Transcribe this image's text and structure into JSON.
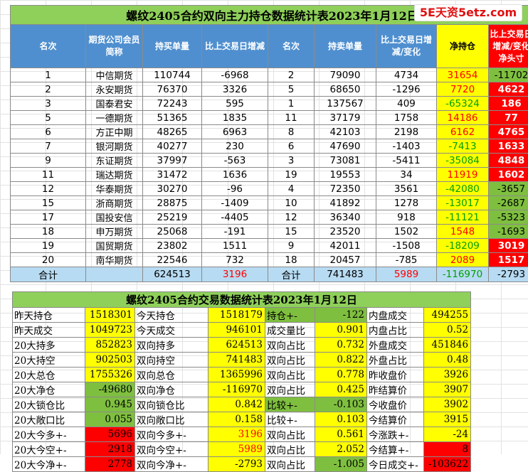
{
  "top": {
    "title": "螺纹2405合约双向主力持仓数据统计表2023年1月12日",
    "headers": {
      "rank_buy": "名次",
      "member": "期货公司会员简称",
      "buy_vol": "持买单量",
      "buy_chg": "比上交易日增减",
      "rank_sell": "名次",
      "sell_vol": "持卖单量",
      "sell_chg": "比上交易日增减/变化",
      "net": "净持仓",
      "net_chg": "比上交易日增减/变化净头寸"
    },
    "rows": [
      {
        "rank": "1",
        "name": "中信期货",
        "buy": "110744",
        "buy_chg": "-6968",
        "srank": "2",
        "sell": "79090",
        "sell_chg": "4734",
        "net": "31654",
        "net_chg": "-11702"
      },
      {
        "rank": "2",
        "name": "永安期货",
        "buy": "76370",
        "buy_chg": "3326",
        "srank": "5",
        "sell": "68650",
        "sell_chg": "-1296",
        "net": "7720",
        "net_chg": "4622"
      },
      {
        "rank": "3",
        "name": "国泰君安",
        "buy": "72243",
        "buy_chg": "595",
        "srank": "1",
        "sell": "137567",
        "sell_chg": "409",
        "net": "-65324",
        "net_chg": "186"
      },
      {
        "rank": "5",
        "name": "一德期货",
        "buy": "51365",
        "buy_chg": "1835",
        "srank": "11",
        "sell": "37179",
        "sell_chg": "1758",
        "net": "14186",
        "net_chg": "77"
      },
      {
        "rank": "6",
        "name": "方正中期",
        "buy": "48265",
        "buy_chg": "6963",
        "srank": "8",
        "sell": "42103",
        "sell_chg": "2198",
        "net": "6162",
        "net_chg": "4765"
      },
      {
        "rank": "7",
        "name": "银河期货",
        "buy": "40277",
        "buy_chg": "230",
        "srank": "6",
        "sell": "47690",
        "sell_chg": "-1403",
        "net": "-7413",
        "net_chg": "1633"
      },
      {
        "rank": "9",
        "name": "东证期货",
        "buy": "37997",
        "buy_chg": "-563",
        "srank": "3",
        "sell": "73081",
        "sell_chg": "-5411",
        "net": "-35084",
        "net_chg": "4848"
      },
      {
        "rank": "11",
        "name": "瑞达期货",
        "buy": "31472",
        "buy_chg": "1636",
        "srank": "19",
        "sell": "19553",
        "sell_chg": "34",
        "net": "11919",
        "net_chg": "1602"
      },
      {
        "rank": "12",
        "name": "华泰期货",
        "buy": "30270",
        "buy_chg": "-96",
        "srank": "4",
        "sell": "72350",
        "sell_chg": "3561",
        "net": "-42080",
        "net_chg": "-3657"
      },
      {
        "rank": "15",
        "name": "浙商期货",
        "buy": "28875",
        "buy_chg": "-1409",
        "srank": "10",
        "sell": "41892",
        "sell_chg": "1278",
        "net": "-13017",
        "net_chg": "-2687"
      },
      {
        "rank": "17",
        "name": "国投安信",
        "buy": "25219",
        "buy_chg": "-4405",
        "srank": "12",
        "sell": "36340",
        "sell_chg": "918",
        "net": "-11121",
        "net_chg": "-5323"
      },
      {
        "rank": "18",
        "name": "申万期货",
        "buy": "25068",
        "buy_chg": "-191",
        "srank": "15",
        "sell": "23520",
        "sell_chg": "1502",
        "net": "1548",
        "net_chg": "-1693"
      },
      {
        "rank": "19",
        "name": "国贸期货",
        "buy": "23802",
        "buy_chg": "1511",
        "srank": "9",
        "sell": "42011",
        "sell_chg": "-1508",
        "net": "-18209",
        "net_chg": "3019"
      },
      {
        "rank": "20",
        "name": "南华期货",
        "buy": "22546",
        "buy_chg": "732",
        "srank": "18",
        "sell": "20457",
        "sell_chg": "-785",
        "net": "2089",
        "net_chg": "1517"
      }
    ],
    "total": {
      "label": "合计",
      "buy": "624513",
      "buy_chg": "3196",
      "label2": "合计",
      "sell": "741483",
      "sell_chg": "5989",
      "net": "-116970",
      "net_chg": "-2793"
    }
  },
  "bottom": {
    "title": "螺纹2405合约交易数据统计表2023年1月12日",
    "rows": [
      [
        "昨天持仓",
        "1518301",
        "今天持仓",
        "1518179",
        "持仓+-",
        "-122",
        "内盘成交",
        "494255"
      ],
      [
        "昨天成交",
        "1049723",
        "今天成交",
        "946101",
        "成交量比",
        "0.901",
        "内盘占比",
        "0.52"
      ],
      [
        "20大持多",
        "852823",
        "双向持多",
        "624513",
        "双向占比",
        "0.732",
        "外盘成交",
        "451846"
      ],
      [
        "20大持空",
        "902503",
        "双向持空",
        "741483",
        "双向占比",
        "0.822",
        "外盘占比",
        "0.48"
      ],
      [
        "20大总仓",
        "1755326",
        "双向总仓",
        "1365996",
        "双向占比",
        "0.778",
        "昨收盘价",
        "3926"
      ],
      [
        "20大净仓",
        "-49680",
        "双向净仓",
        "-116970",
        "双向占比",
        "0.425",
        "昨结算价",
        "3907"
      ],
      [
        "20大锁仓比",
        "0.945",
        "双向锁仓比",
        "0.842",
        "比较+-",
        "-0.103",
        "今收盘价",
        "3902"
      ],
      [
        "20大敞口比",
        "0.055",
        "双向敞口比",
        "0.158",
        "比较+-",
        "0.103",
        "今结算价",
        "3915"
      ],
      [
        "20大今多+-",
        "5696",
        "双向今多+-",
        "3196",
        "双向占比",
        "0.561",
        "今涨跌+-",
        "-24"
      ],
      [
        "20大今空+-",
        "2918",
        "双向今空+-",
        "5989",
        "双向占比",
        "2.052",
        "今结算+-",
        "8"
      ],
      [
        "20大今净+-",
        "2778",
        "双向今净+-",
        "-2793",
        "双向占比",
        "-1.005",
        "今日成交+-",
        "-103622"
      ]
    ]
  },
  "watermark": "5E天资5etz.com",
  "colors": {
    "title_green": "#8ed05a",
    "header_blue": "#4f8fcf",
    "yellow": "#ffff00",
    "green": "#7fbf3f",
    "red": "#ff0000",
    "total_blue": "#b7dbf2"
  }
}
